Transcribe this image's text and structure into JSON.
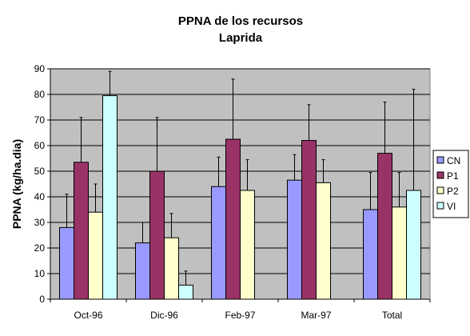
{
  "chart_data": {
    "type": "bar",
    "title": "PPNA de los recursos",
    "subtitle": "Laprida",
    "xlabel": "",
    "ylabel": "PPNA (kg/ha.dia)",
    "ylim": [
      0,
      90
    ],
    "yticks": [
      0,
      10,
      20,
      30,
      40,
      50,
      60,
      70,
      80,
      90
    ],
    "categories": [
      "Oct-96",
      "Dic-96",
      "Feb-97",
      "Mar-97",
      "Total"
    ],
    "grid": true,
    "legend_position": "right",
    "series": [
      {
        "name": "CN",
        "color": "#9999ff",
        "values": [
          28,
          22,
          44,
          46.5,
          35
        ],
        "error_upper": [
          41,
          30,
          55.5,
          56.5,
          49.5
        ]
      },
      {
        "name": "P1",
        "color": "#993366",
        "values": [
          53.5,
          50,
          62.5,
          62,
          57
        ],
        "error_upper": [
          71,
          71,
          86,
          76,
          77
        ]
      },
      {
        "name": "P2",
        "color": "#ffffcc",
        "values": [
          34,
          24,
          42.5,
          45.5,
          36
        ],
        "error_upper": [
          45,
          33.5,
          54.5,
          54.5,
          49.5
        ]
      },
      {
        "name": "VI",
        "color": "#ccffff",
        "values": [
          79.5,
          5.5,
          null,
          null,
          42.5
        ],
        "error_upper": [
          89,
          11,
          null,
          null,
          82
        ]
      }
    ]
  }
}
